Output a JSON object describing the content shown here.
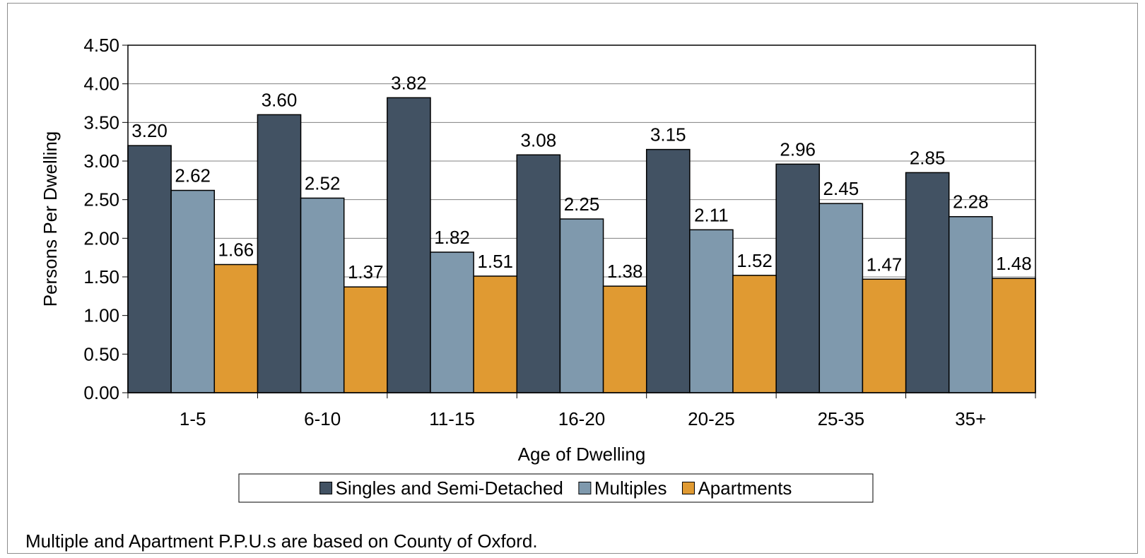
{
  "chart_data": {
    "type": "bar",
    "categories": [
      "1-5",
      "6-10",
      "11-15",
      "16-20",
      "20-25",
      "25-35",
      "35+"
    ],
    "series": [
      {
        "name": "Singles and Semi-Detached",
        "color": "#425263",
        "values": [
          3.2,
          3.6,
          3.82,
          3.08,
          3.15,
          2.96,
          2.85
        ]
      },
      {
        "name": "Multiples",
        "color": "#7f99ad",
        "values": [
          2.62,
          2.52,
          1.82,
          2.25,
          2.11,
          2.45,
          2.28
        ]
      },
      {
        "name": "Apartments",
        "color": "#e09a32",
        "values": [
          1.66,
          1.37,
          1.51,
          1.38,
          1.52,
          1.47,
          1.48
        ]
      }
    ],
    "xlabel": "Age of Dwelling",
    "ylabel": "Persons Per Dwelling",
    "ylim": [
      0,
      4.5
    ],
    "ytick_step": 0.5,
    "grid": "horizontal",
    "legend": "bottom"
  },
  "footnote": "Multiple and Apartment P.P.U.s are based on County of Oxford."
}
